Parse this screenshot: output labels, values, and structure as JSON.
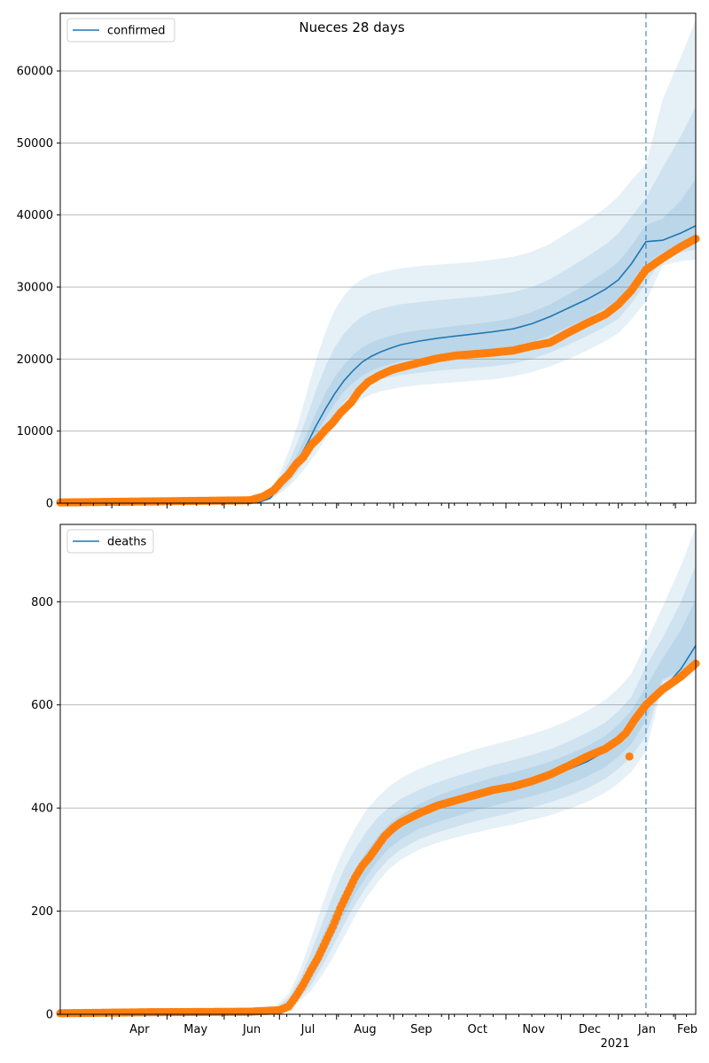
{
  "title": "Nueces 28 days",
  "colors": {
    "model": "#1f77b4",
    "observed": "#ff7f0e",
    "band": "#1f77b4",
    "cutoff": "#1f77b4",
    "grid": "#b0b0b0"
  },
  "x_axis": {
    "month_labels": [
      "Apr",
      "May",
      "Jun",
      "Jul",
      "Aug",
      "Sep",
      "Oct",
      "Nov",
      "Dec",
      "Jan",
      "Feb"
    ],
    "year_label": "2021"
  },
  "chart_data": [
    {
      "type": "line",
      "legend": "confirmed",
      "legend_position": "top-left",
      "grid": "y",
      "x_range": [
        "2020-03-04",
        "2021-02-12"
      ],
      "cutoff_date": "2021-01-16",
      "ylim": [
        0,
        68000
      ],
      "yticks": [
        0,
        10000,
        20000,
        30000,
        40000,
        50000,
        60000
      ],
      "model": {
        "x": [
          "2020-03-04",
          "2020-06-20",
          "2020-06-26",
          "2020-07-01",
          "2020-07-06",
          "2020-07-11",
          "2020-07-16",
          "2020-07-21",
          "2020-07-26",
          "2020-07-31",
          "2020-08-05",
          "2020-08-10",
          "2020-08-15",
          "2020-08-20",
          "2020-08-25",
          "2020-08-30",
          "2020-09-05",
          "2020-09-15",
          "2020-09-25",
          "2020-10-05",
          "2020-10-15",
          "2020-10-25",
          "2020-11-05",
          "2020-11-15",
          "2020-11-25",
          "2020-12-05",
          "2020-12-15",
          "2020-12-25",
          "2021-01-01",
          "2021-01-08",
          "2021-01-16",
          "2021-01-25",
          "2021-02-04",
          "2021-02-12"
        ],
        "y": [
          0,
          100,
          700,
          2200,
          3800,
          5900,
          8200,
          10800,
          13100,
          15200,
          17000,
          18400,
          19600,
          20400,
          21000,
          21500,
          22000,
          22500,
          22900,
          23200,
          23500,
          23800,
          24200,
          24900,
          25900,
          27100,
          28300,
          29700,
          31000,
          33200,
          36300,
          36500,
          37500,
          38500
        ],
        "bands": [
          {
            "lower": [
              0,
              0,
              400,
              1300,
              2300,
              3600,
              5200,
              7000,
              8900,
              10700,
              12400,
              13600,
              14500,
              15100,
              15500,
              15800,
              16100,
              16400,
              16600,
              16800,
              17000,
              17200,
              17600,
              18200,
              19000,
              20000,
              21200,
              22500,
              23600,
              25500,
              28000,
              33000,
              33600,
              33800
            ],
            "upper": [
              0,
              300,
              1300,
              4000,
              7200,
              11000,
              15500,
              20000,
              23800,
              26800,
              28800,
              30200,
              31100,
              31700,
              32000,
              32300,
              32600,
              32900,
              33100,
              33300,
              33500,
              33800,
              34200,
              34900,
              36000,
              37600,
              39200,
              41000,
              42600,
              44800,
              47000,
              56000,
              62000,
              67000
            ]
          },
          {
            "lower": [
              0,
              20,
              500,
              1600,
              2800,
              4400,
              6200,
              8300,
              10400,
              12300,
              14000,
              15200,
              16100,
              16800,
              17200,
              17500,
              17800,
              18100,
              18400,
              18600,
              18800,
              19000,
              19400,
              20000,
              20900,
              22000,
              23200,
              24500,
              25600,
              27700,
              30500,
              34000,
              34800,
              35200
            ],
            "upper": [
              0,
              200,
              1000,
              3200,
              5600,
              8600,
              12100,
              15800,
              19000,
              21600,
              23500,
              24900,
              25900,
              26600,
              27000,
              27300,
              27600,
              27900,
              28200,
              28400,
              28600,
              28900,
              29300,
              30000,
              31100,
              32600,
              34200,
              35900,
              37400,
              39700,
              42400,
              46500,
              51000,
              55000
            ]
          },
          {
            "lower": [
              0,
              50,
              600,
              1900,
              3300,
              5100,
              7200,
              9600,
              11800,
              13800,
              15500,
              16700,
              17700,
              18400,
              18900,
              19300,
              19700,
              20100,
              20400,
              20700,
              20900,
              21200,
              21600,
              22300,
              23300,
              24500,
              25700,
              27100,
              28300,
              30400,
              33200,
              34800,
              35800,
              36300
            ],
            "upper": [
              0,
              150,
              850,
              2600,
              4500,
              7000,
              9700,
              12600,
              15300,
              17500,
              19200,
              20600,
              21600,
              22300,
              22800,
              23200,
              23600,
              24000,
              24300,
              24600,
              24900,
              25200,
              25700,
              26500,
              27600,
              29000,
              30500,
              32100,
              33500,
              35700,
              38600,
              39500,
              42000,
              45000
            ]
          }
        ]
      },
      "observed": {
        "x": [
          "2020-03-04",
          "2020-06-15",
          "2020-06-22",
          "2020-06-28",
          "2020-07-02",
          "2020-07-06",
          "2020-07-10",
          "2020-07-14",
          "2020-07-18",
          "2020-07-22",
          "2020-07-26",
          "2020-07-30",
          "2020-08-03",
          "2020-08-07",
          "2020-08-09",
          "2020-08-13",
          "2020-08-18",
          "2020-08-24",
          "2020-08-31",
          "2020-09-07",
          "2020-09-15",
          "2020-09-25",
          "2020-10-05",
          "2020-10-15",
          "2020-10-25",
          "2020-11-05",
          "2020-11-15",
          "2020-11-25",
          "2020-12-05",
          "2020-12-15",
          "2020-12-25",
          "2021-01-01",
          "2021-01-08",
          "2021-01-16",
          "2021-01-25",
          "2021-02-04",
          "2021-02-12"
        ],
        "y": [
          100,
          400,
          900,
          1800,
          3000,
          4000,
          5400,
          6400,
          8000,
          9000,
          10200,
          11200,
          12500,
          13500,
          14000,
          15500,
          16800,
          17700,
          18500,
          19000,
          19500,
          20100,
          20500,
          20700,
          20900,
          21200,
          21800,
          22300,
          23700,
          25000,
          26200,
          27600,
          29500,
          32400,
          34000,
          35600,
          36700
        ]
      }
    },
    {
      "type": "line",
      "legend": "deaths",
      "legend_position": "top-left",
      "grid": "y",
      "x_range": [
        "2020-03-04",
        "2021-02-12"
      ],
      "cutoff_date": "2021-01-16",
      "ylim": [
        0,
        950
      ],
      "yticks": [
        0,
        200,
        400,
        600,
        800
      ],
      "model": {
        "x": [
          "2020-03-04",
          "2020-06-20",
          "2020-06-28",
          "2020-07-06",
          "2020-07-12",
          "2020-07-18",
          "2020-07-24",
          "2020-07-30",
          "2020-08-05",
          "2020-08-11",
          "2020-08-17",
          "2020-08-23",
          "2020-08-29",
          "2020-09-05",
          "2020-09-15",
          "2020-09-25",
          "2020-10-05",
          "2020-10-15",
          "2020-10-25",
          "2020-11-05",
          "2020-11-15",
          "2020-11-25",
          "2020-12-05",
          "2020-12-15",
          "2020-12-25",
          "2021-01-01",
          "2021-01-08",
          "2021-01-16",
          "2021-01-25",
          "2021-02-04",
          "2021-02-12"
        ],
        "y": [
          0,
          2,
          6,
          20,
          45,
          80,
          125,
          170,
          215,
          255,
          290,
          320,
          345,
          365,
          385,
          400,
          412,
          423,
          433,
          443,
          452,
          462,
          475,
          490,
          510,
          530,
          555,
          600,
          630,
          670,
          715
        ],
        "bands": [
          {
            "lower": [
              0,
              0,
              3,
              10,
              25,
              45,
              75,
              110,
              150,
              190,
              225,
              255,
              280,
              300,
              320,
              333,
              343,
              352,
              360,
              368,
              377,
              386,
              398,
              412,
              430,
              448,
              470,
              510,
              640,
              655,
              665
            ],
            "upper": [
              0,
              5,
              12,
              40,
              85,
              145,
              210,
              270,
              320,
              360,
              395,
              420,
              440,
              458,
              476,
              490,
              502,
              513,
              523,
              533,
              543,
              555,
              570,
              588,
              610,
              632,
              660,
              720,
              790,
              870,
              945
            ]
          },
          {
            "lower": [
              0,
              1,
              4,
              13,
              31,
              56,
              92,
              132,
              174,
              213,
              246,
              276,
              300,
              320,
              340,
              353,
              364,
              374,
              383,
              392,
              401,
              411,
              423,
              438,
              457,
              476,
              499,
              540,
              645,
              660,
              672
            ],
            "upper": [
              0,
              4,
              9,
              32,
              68,
              118,
              175,
              230,
              281,
              320,
              353,
              380,
              400,
              418,
              436,
              450,
              462,
              473,
              483,
              493,
              503,
              514,
              529,
              546,
              566,
              588,
              615,
              675,
              730,
              800,
              870
            ]
          },
          {
            "lower": [
              0,
              1,
              5,
              16,
              37,
              66,
              105,
              150,
              193,
              233,
              266,
              296,
              320,
              340,
              360,
              373,
              384,
              395,
              404,
              414,
              423,
              433,
              446,
              461,
              480,
              500,
              524,
              570,
              650,
              665,
              680
            ],
            "upper": [
              0,
              3,
              8,
              26,
              56,
              97,
              148,
              195,
              240,
              280,
              314,
              343,
              367,
              387,
              408,
              424,
              437,
              448,
              459,
              469,
              479,
              490,
              504,
              520,
              540,
              562,
              589,
              635,
              690,
              745,
              805
            ]
          }
        ]
      },
      "observed": {
        "x": [
          "2020-03-04",
          "2020-04-20",
          "2020-06-15",
          "2020-07-01",
          "2020-07-06",
          "2020-07-10",
          "2020-07-14",
          "2020-07-18",
          "2020-07-22",
          "2020-07-26",
          "2020-07-30",
          "2020-08-03",
          "2020-08-07",
          "2020-08-11",
          "2020-08-15",
          "2020-08-19",
          "2020-08-23",
          "2020-08-27",
          "2020-09-01",
          "2020-09-05",
          "2020-09-15",
          "2020-09-25",
          "2020-10-05",
          "2020-10-15",
          "2020-10-25",
          "2020-11-05",
          "2020-11-15",
          "2020-11-25",
          "2020-12-05",
          "2020-12-15",
          "2020-12-25",
          "2021-01-01",
          "2021-01-05",
          "2021-01-10",
          "2021-01-16",
          "2021-01-25",
          "2021-02-04",
          "2021-02-12"
        ],
        "y": [
          2,
          4,
          5,
          8,
          15,
          35,
          58,
          85,
          110,
          140,
          170,
          205,
          235,
          265,
          288,
          305,
          325,
          345,
          362,
          372,
          390,
          405,
          415,
          425,
          435,
          442,
          452,
          465,
          482,
          500,
          515,
          532,
          545,
          572,
          600,
          630,
          655,
          680
        ],
        "outliers": [
          {
            "x": "2021-01-07",
            "y": 500
          }
        ]
      }
    }
  ]
}
